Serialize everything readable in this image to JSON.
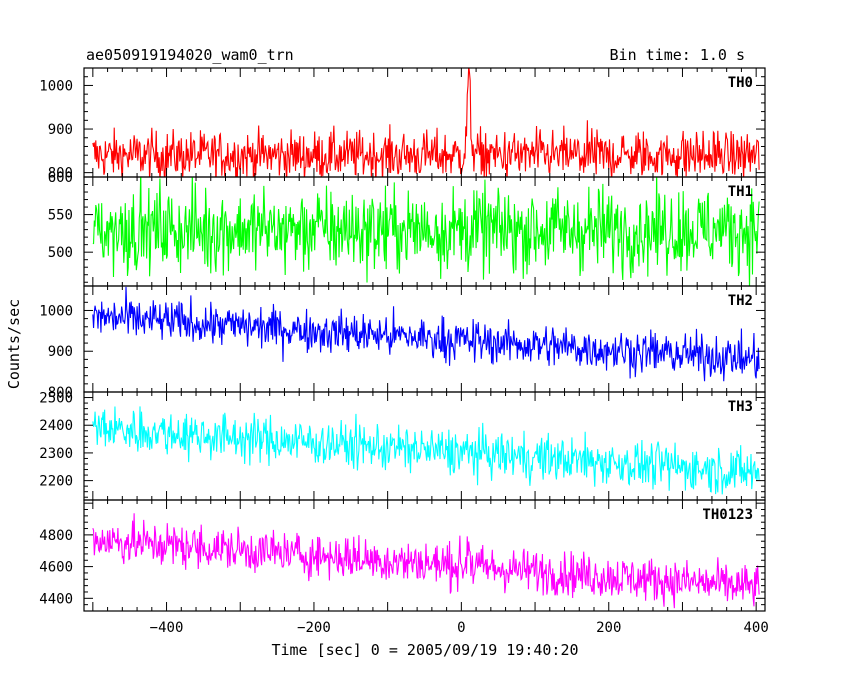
{
  "chart_data": {
    "type": "line",
    "title": "ae050919194020_wam0_trn",
    "bin_time": "Bin time: 1.0 s",
    "xlabel": "Time [sec] 0 = 2005/09/19 19:40:20",
    "ylabel": "Counts/sec",
    "xlim": [
      -512,
      412
    ],
    "xticks": [
      "−400",
      "−200",
      "0",
      "200",
      "400"
    ],
    "xtick_values": [
      -400,
      -200,
      0,
      200,
      400
    ],
    "grid": false,
    "note": "Each panel is a ~1 s binned light curve; values below are approximate mean level, trend and noise amplitude read from the axes.",
    "panels": [
      {
        "name": "TH0",
        "color": "#ff0000",
        "ylim": [
          790,
          1040
        ],
        "yticks": [
          "800",
          "900",
          "1000"
        ],
        "ytick_values": [
          800,
          900,
          1000
        ],
        "mean_start": 840,
        "mean_end": 840,
        "noise": 28,
        "spike": {
          "x": 10,
          "peak": 1040
        }
      },
      {
        "name": "TH1",
        "color": "#00ff00",
        "ylim": [
          455,
          600
        ],
        "yticks": [
          "500",
          "550",
          "600"
        ],
        "ytick_values": [
          500,
          550,
          600
        ],
        "mean_start": 530,
        "mean_end": 530,
        "noise": 28
      },
      {
        "name": "TH2",
        "color": "#0000ff",
        "ylim": [
          800,
          1060
        ],
        "yticks": [
          "800",
          "900",
          "1000"
        ],
        "ytick_values": [
          800,
          900,
          1000
        ],
        "mean_start": 985,
        "mean_end": 880,
        "noise": 26
      },
      {
        "name": "TH3",
        "color": "#00ffff",
        "ylim": [
          2130,
          2520
        ],
        "yticks": [
          "2200",
          "2300",
          "2400",
          "2500"
        ],
        "ytick_values": [
          2200,
          2300,
          2400,
          2500
        ],
        "mean_start": 2390,
        "mean_end": 2230,
        "noise": 42
      },
      {
        "name": "TH0123",
        "color": "#ff00ff",
        "ylim": [
          4320,
          5020
        ],
        "yticks": [
          "4400",
          "4600",
          "4800"
        ],
        "ytick_values": [
          4400,
          4600,
          4800
        ],
        "mean_start": 4770,
        "mean_end": 4470,
        "noise": 70,
        "spike": {
          "x": 10,
          "peak": 4940
        }
      }
    ]
  }
}
